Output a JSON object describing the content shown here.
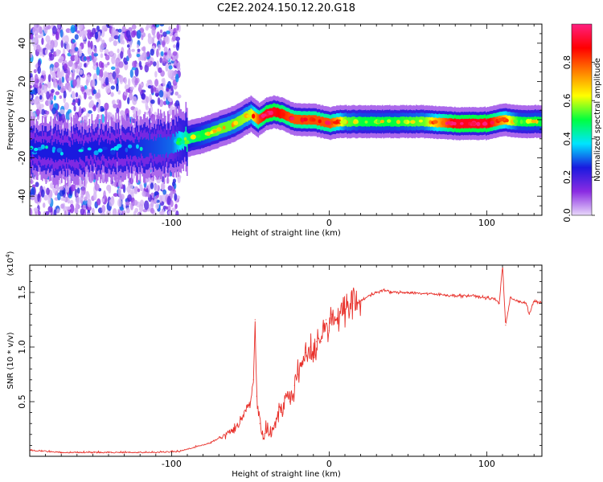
{
  "title": "C2E2.2024.150.12.20.G18",
  "chart_data": [
    {
      "type": "heatmap",
      "name": "spectrogram",
      "xlabel": "Height of straight line (km)",
      "ylabel": "Frequency (Hz)",
      "xlim": [
        -190,
        135
      ],
      "ylim": [
        -50,
        50
      ],
      "xticks": [
        -100,
        0,
        100
      ],
      "yticks": [
        -40,
        -20,
        0,
        20,
        40
      ],
      "colorbar": {
        "label": "Normalized spectral amplitude",
        "range": [
          0,
          1
        ],
        "ticks": [
          0.0,
          0.2,
          0.4,
          0.6,
          0.8
        ],
        "colors": [
          "#e8d8fa",
          "#8a2be2",
          "#1a1adf",
          "#00e5ff",
          "#00ff40",
          "#ffff00",
          "#ff8000",
          "#ff0000",
          "#ff2080"
        ]
      },
      "ridge": {
        "x": [
          -190,
          -170,
          -150,
          -130,
          -110,
          -100,
          -90,
          -80,
          -70,
          -60,
          -50,
          -45,
          -40,
          -35,
          -30,
          -25,
          -20,
          -10,
          0,
          5,
          10,
          20,
          40,
          60,
          80,
          100,
          110,
          120,
          135
        ],
        "y": [
          -15,
          -17,
          -16,
          -15,
          -14,
          -13,
          -10,
          -8,
          -5,
          -2,
          3,
          0,
          3,
          4,
          3,
          1,
          0,
          0,
          -2,
          -1,
          -1,
          -1,
          -1,
          -1,
          -2,
          -2,
          0,
          -1,
          -1
        ],
        "amplitude": [
          0.25,
          0.25,
          0.25,
          0.25,
          0.28,
          0.3,
          0.45,
          0.5,
          0.55,
          0.55,
          0.6,
          0.8,
          0.9,
          0.9,
          0.85,
          0.8,
          0.8,
          0.8,
          0.8,
          0.7,
          0.55,
          0.5,
          0.5,
          0.55,
          0.9,
          0.9,
          0.7,
          0.5,
          0.5
        ]
      },
      "noise_region_x": [
        -190,
        -95
      ]
    },
    {
      "type": "line",
      "name": "snr",
      "xlabel": "Height of straight line (km)",
      "ylabel": "SNR (10 * v/v)",
      "yscale_label": "(x10",
      "yscale_exp": "4",
      "yscale_close": ")",
      "xlim": [
        -190,
        135
      ],
      "ylim": [
        0,
        1.75
      ],
      "xticks": [
        -100,
        0,
        100
      ],
      "yticks": [
        0.5,
        1.0,
        1.5
      ],
      "color": "#e8302a",
      "x": [
        -190,
        -170,
        -150,
        -130,
        -110,
        -95,
        -85,
        -75,
        -65,
        -58,
        -55,
        -52,
        -50,
        -48,
        -47,
        -46,
        -44,
        -42,
        -40,
        -38,
        -35,
        -32,
        -30,
        -28,
        -25,
        -22,
        -20,
        -18,
        -15,
        -12,
        -10,
        -8,
        -5,
        -2,
        0,
        2,
        5,
        8,
        10,
        15,
        20,
        25,
        30,
        35,
        40,
        50,
        60,
        70,
        80,
        90,
        100,
        105,
        108,
        110,
        112,
        115,
        120,
        125,
        127,
        130,
        135
      ],
      "y": [
        0.05,
        0.03,
        0.03,
        0.03,
        0.03,
        0.04,
        0.08,
        0.12,
        0.2,
        0.28,
        0.35,
        0.45,
        0.5,
        0.7,
        1.25,
        0.55,
        0.3,
        0.2,
        0.25,
        0.2,
        0.28,
        0.45,
        0.4,
        0.55,
        0.5,
        0.65,
        0.75,
        0.85,
        0.95,
        1.0,
        0.9,
        1.05,
        1.05,
        1.25,
        1.15,
        1.3,
        1.25,
        1.4,
        1.32,
        1.4,
        1.42,
        1.47,
        1.5,
        1.52,
        1.5,
        1.5,
        1.49,
        1.48,
        1.47,
        1.47,
        1.45,
        1.44,
        1.4,
        1.75,
        1.2,
        1.45,
        1.42,
        1.4,
        1.3,
        1.42,
        1.4
      ]
    }
  ]
}
